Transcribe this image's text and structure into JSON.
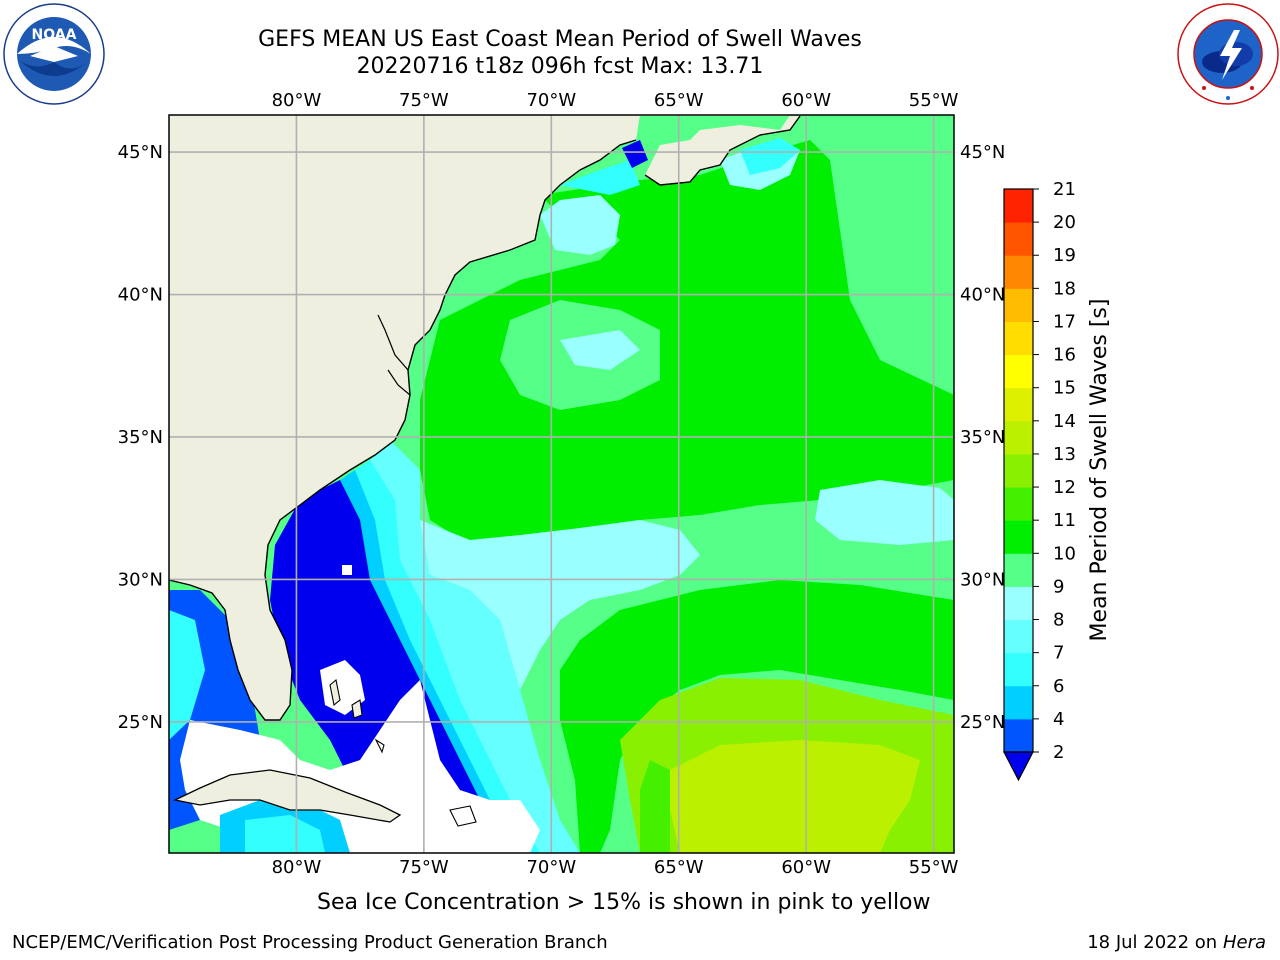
{
  "header": {
    "title_line1": "GEFS MEAN US East Coast Mean Period of Swell Waves",
    "title_line2": "20220716 t18z 096h fcst   Max: 13.71"
  },
  "logos": {
    "left": {
      "icon": "noaa-logo-icon",
      "text": "NOAA",
      "ring_text": "NATIONAL OCEANIC AND ATMOSPHERIC ADMINISTRATION · U.S. DEPARTMENT OF COMMERCE"
    },
    "right": {
      "icon": "nws-logo-icon",
      "ring_text": "NATIONAL WEATHER SERVICE"
    }
  },
  "map": {
    "lon_range": [
      -85,
      -54.2
    ],
    "lat_range": [
      20.4,
      46.3
    ],
    "lon_ticks": [
      {
        "value": -80,
        "label": "80°W"
      },
      {
        "value": -75,
        "label": "75°W"
      },
      {
        "value": -70,
        "label": "70°W"
      },
      {
        "value": -65,
        "label": "65°W"
      },
      {
        "value": -60,
        "label": "60°W"
      },
      {
        "value": -55,
        "label": "55°W"
      }
    ],
    "lat_ticks": [
      {
        "value": 45,
        "label": "45°N"
      },
      {
        "value": 40,
        "label": "40°N"
      },
      {
        "value": 35,
        "label": "35°N"
      },
      {
        "value": 30,
        "label": "30°N"
      },
      {
        "value": 25,
        "label": "25°N"
      }
    ],
    "grid": true,
    "colors": {
      "land": "#efefdf",
      "coast": "#000000",
      "grid": "#b0b0b0",
      "missing": "#ffffff"
    }
  },
  "colorbar": {
    "label": "Mean Period of Swell Waves [s]",
    "ticks": [
      "2",
      "4",
      "6",
      "7",
      "8",
      "9",
      "10",
      "11",
      "12",
      "13",
      "14",
      "15",
      "16",
      "17",
      "18",
      "19",
      "20",
      "21"
    ],
    "colors": [
      "#0055ff",
      "#00cfff",
      "#33ffff",
      "#66ffff",
      "#99ffff",
      "#55ff88",
      "#00ee00",
      "#44f000",
      "#88f000",
      "#bbf000",
      "#ddf000",
      "#ffff00",
      "#ffdd00",
      "#ffbb00",
      "#ff8800",
      "#ff5500",
      "#ff2200"
    ],
    "extend_below_color": "#0000ee",
    "top_color": "#ff0000"
  },
  "subtitle": "Sea Ice Concentration > 15% is shown in pink to yellow",
  "footer": {
    "left": "NCEP/EMC/Verification Post Processing Product Generation Branch",
    "right_prefix": "18 Jul 2022 on ",
    "right_machine": "Hera"
  }
}
